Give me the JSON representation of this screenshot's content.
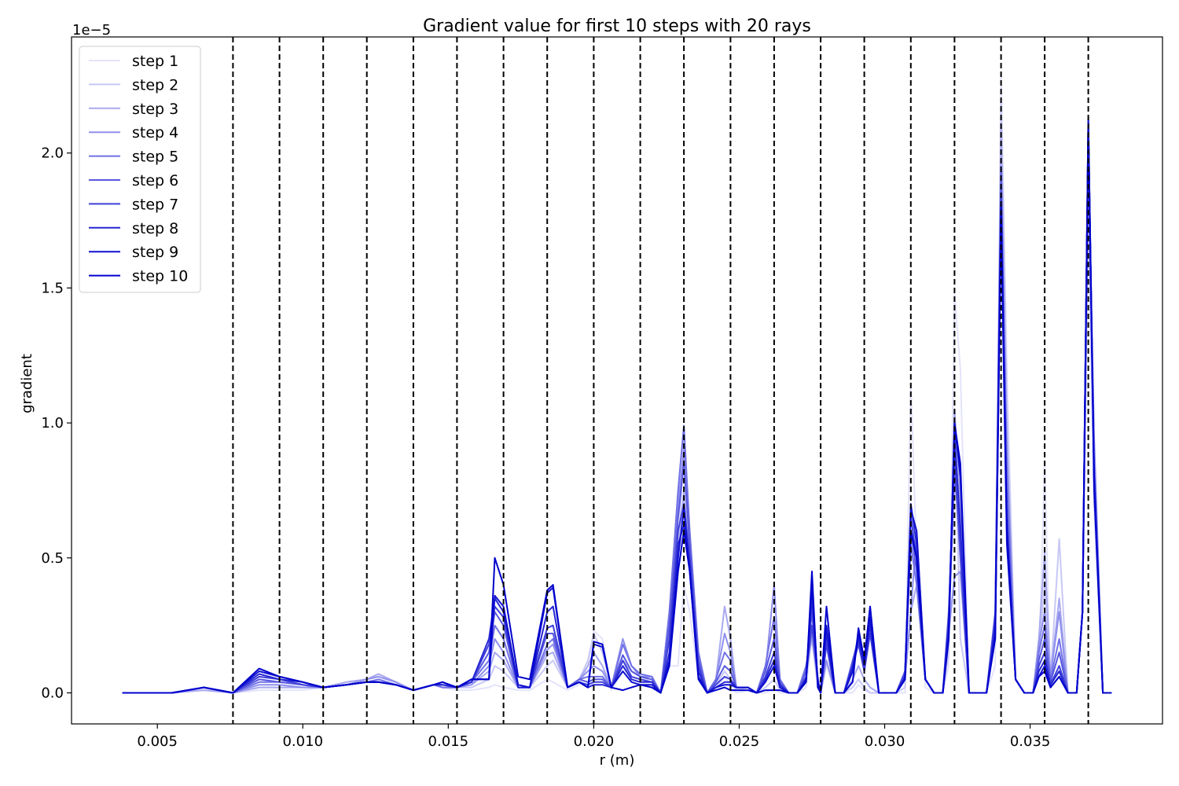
{
  "chart_data": {
    "type": "line",
    "title": "Gradient value for first 10 steps with 20 rays",
    "xlabel": "r (m)",
    "ylabel": "gradient",
    "offset_text": "1e−5",
    "y_scale": 1e-05,
    "xlim": [
      0.00205,
      0.03955
    ],
    "ylim": [
      -0.115,
      2.43
    ],
    "xticks": [
      {
        "value": 0.005,
        "label": "0.005"
      },
      {
        "value": 0.01,
        "label": "0.010"
      },
      {
        "value": 0.015,
        "label": "0.015"
      },
      {
        "value": 0.02,
        "label": "0.020"
      },
      {
        "value": 0.025,
        "label": "0.025"
      },
      {
        "value": 0.03,
        "label": "0.030"
      },
      {
        "value": 0.035,
        "label": "0.035"
      }
    ],
    "yticks": [
      {
        "value": 0.0,
        "label": "0.0"
      },
      {
        "value": 0.5,
        "label": "0.5"
      },
      {
        "value": 1.0,
        "label": "1.0"
      },
      {
        "value": 1.5,
        "label": "1.5"
      },
      {
        "value": 2.0,
        "label": "2.0"
      }
    ],
    "vlines": [
      0.0076,
      0.0092,
      0.0107,
      0.0122,
      0.0138,
      0.0153,
      0.0169,
      0.0184,
      0.02,
      0.0216,
      0.0231,
      0.0247,
      0.0262,
      0.0278,
      0.0293,
      0.0309,
      0.0324,
      0.034,
      0.0355,
      0.037
    ],
    "legend_position": "upper left",
    "grid": false,
    "x": [
      0.0038,
      0.0055,
      0.0066,
      0.0076,
      0.0085,
      0.0092,
      0.01,
      0.0107,
      0.0115,
      0.0122,
      0.0126,
      0.0132,
      0.0138,
      0.0145,
      0.0148,
      0.0153,
      0.0158,
      0.0164,
      0.0166,
      0.0169,
      0.0174,
      0.0178,
      0.0184,
      0.0186,
      0.0191,
      0.0195,
      0.0198,
      0.02,
      0.0203,
      0.0206,
      0.021,
      0.0213,
      0.0216,
      0.022,
      0.0223,
      0.0226,
      0.0229,
      0.0231,
      0.0233,
      0.0236,
      0.0239,
      0.0242,
      0.0245,
      0.0247,
      0.0249,
      0.0253,
      0.0256,
      0.0259,
      0.0262,
      0.0264,
      0.0267,
      0.027,
      0.0273,
      0.0275,
      0.0277,
      0.0278,
      0.028,
      0.0283,
      0.0286,
      0.0289,
      0.0291,
      0.0293,
      0.0295,
      0.0298,
      0.0301,
      0.0304,
      0.0307,
      0.0309,
      0.0311,
      0.0314,
      0.0317,
      0.032,
      0.0322,
      0.0324,
      0.0326,
      0.0329,
      0.0332,
      0.0335,
      0.0338,
      0.034,
      0.0342,
      0.0345,
      0.0348,
      0.0351,
      0.0353,
      0.0355,
      0.0357,
      0.036,
      0.0363,
      0.0366,
      0.0368,
      0.037,
      0.0372,
      0.0375,
      0.0378
    ],
    "series": [
      {
        "name": "step 1",
        "color": "#e3e3fb",
        "values": [
          0,
          0,
          0.01,
          0,
          0.01,
          0.01,
          0.01,
          0.02,
          0.04,
          0.05,
          0.06,
          0.04,
          0.01,
          0.03,
          0.02,
          0.01,
          0.01,
          0.02,
          0.03,
          0.02,
          0.01,
          0.01,
          0.05,
          0.04,
          0.01,
          0.03,
          0.1,
          0.23,
          0.2,
          0.01,
          0.08,
          0.04,
          0.03,
          0.03,
          0,
          0.1,
          0.1,
          0.4,
          0.3,
          0.05,
          0,
          0.02,
          0.06,
          0.03,
          0,
          0.01,
          0,
          0,
          0.02,
          0,
          0,
          0,
          0.02,
          0.2,
          0.02,
          0,
          0.1,
          0,
          0,
          0,
          0.03,
          0.01,
          0,
          0,
          0,
          0,
          0,
          1.15,
          0.5,
          0.02,
          0,
          0,
          0.1,
          1.48,
          1.2,
          0,
          0,
          0,
          0.1,
          2.3,
          1.2,
          0.05,
          0,
          0,
          0.1,
          0.85,
          0.02,
          0.1,
          0,
          0,
          0.3,
          1.9,
          0.8,
          0,
          0
        ]
      },
      {
        "name": "step 2",
        "color": "#c8c8f6",
        "values": [
          0,
          0,
          0.01,
          0,
          0.02,
          0.02,
          0.02,
          0.02,
          0.04,
          0.05,
          0.07,
          0.04,
          0.01,
          0.03,
          0.02,
          0.02,
          0.02,
          0.05,
          0.1,
          0.08,
          0.02,
          0.02,
          0.1,
          0.12,
          0.02,
          0.05,
          0.12,
          0.22,
          0.15,
          0.02,
          0.1,
          0.06,
          0.05,
          0.05,
          0,
          0.2,
          0.5,
          0.95,
          0.6,
          0.1,
          0,
          0.03,
          0.08,
          0.05,
          0.01,
          0.02,
          0,
          0.02,
          0.05,
          0.01,
          0,
          0,
          0.05,
          0.22,
          0.03,
          0,
          0.12,
          0,
          0,
          0.02,
          0.05,
          0.02,
          0,
          0,
          0,
          0,
          0.02,
          0.7,
          0.45,
          0.05,
          0,
          0,
          0.15,
          1.05,
          0.2,
          0,
          0,
          0,
          0.2,
          2.2,
          1.1,
          0.05,
          0,
          0,
          0.15,
          0.4,
          0.05,
          0.57,
          0,
          0,
          0.3,
          1.8,
          0.7,
          0,
          0
        ]
      },
      {
        "name": "step 3",
        "color": "#a9a9f0",
        "values": [
          0,
          0,
          0.01,
          0,
          0.02,
          0.02,
          0.02,
          0.02,
          0.04,
          0.05,
          0.07,
          0.04,
          0.01,
          0.03,
          0.02,
          0.02,
          0.03,
          0.08,
          0.15,
          0.12,
          0.02,
          0.02,
          0.14,
          0.15,
          0.02,
          0.05,
          0.1,
          0.15,
          0.1,
          0.02,
          0.12,
          0.08,
          0.06,
          0.06,
          0,
          0.25,
          0.5,
          0.75,
          0.5,
          0.15,
          0,
          0.05,
          0.32,
          0.2,
          0.02,
          0.02,
          0,
          0.05,
          0.12,
          0.02,
          0,
          0,
          0.1,
          0.2,
          0.04,
          0,
          0.12,
          0,
          0,
          0.05,
          0.1,
          0.05,
          0.02,
          0,
          0,
          0,
          0.05,
          0.3,
          0.4,
          0.05,
          0,
          0,
          0.2,
          1.05,
          0.7,
          0,
          0,
          0,
          0.25,
          2.1,
          0.95,
          0.05,
          0,
          0,
          0.2,
          0.52,
          0.06,
          0.35,
          0,
          0,
          0.3,
          1.85,
          0.85,
          0,
          0
        ]
      },
      {
        "name": "step 4",
        "color": "#8f8fec",
        "values": [
          0,
          0,
          0.02,
          0,
          0.03,
          0.03,
          0.02,
          0.02,
          0.03,
          0.05,
          0.06,
          0.04,
          0.01,
          0.03,
          0.02,
          0.02,
          0.03,
          0.1,
          0.2,
          0.15,
          0.02,
          0.02,
          0.16,
          0.18,
          0.02,
          0.05,
          0.08,
          0.1,
          0.08,
          0.02,
          0.2,
          0.1,
          0.06,
          0.06,
          0,
          0.3,
          0.7,
          0.9,
          0.55,
          0.15,
          0,
          0.05,
          0.22,
          0.15,
          0.02,
          0.02,
          0,
          0.08,
          0.4,
          0.05,
          0,
          0,
          0.1,
          0.22,
          0.05,
          0,
          0.12,
          0,
          0,
          0.08,
          0.2,
          0.1,
          0.25,
          0,
          0,
          0,
          0.05,
          0.3,
          0.6,
          0.05,
          0,
          0,
          0.22,
          0.43,
          0.45,
          0,
          0,
          0,
          0.2,
          1.75,
          0.9,
          0.05,
          0,
          0,
          0.18,
          0.3,
          0.06,
          0.3,
          0,
          0,
          0.3,
          1.95,
          0.95,
          0,
          0
        ]
      },
      {
        "name": "step 5",
        "color": "#7171e6",
        "values": [
          0,
          0,
          0.02,
          0,
          0.04,
          0.04,
          0.03,
          0.02,
          0.03,
          0.04,
          0.05,
          0.03,
          0.01,
          0.03,
          0.02,
          0.02,
          0.04,
          0.12,
          0.25,
          0.2,
          0.02,
          0.02,
          0.18,
          0.2,
          0.02,
          0.05,
          0.06,
          0.06,
          0.06,
          0.02,
          0.18,
          0.1,
          0.07,
          0.06,
          0,
          0.3,
          0.75,
          0.99,
          0.6,
          0.15,
          0,
          0.05,
          0.15,
          0.12,
          0.02,
          0.02,
          0,
          0.1,
          0.28,
          0.05,
          0,
          0,
          0.1,
          0.25,
          0.06,
          0,
          0.18,
          0,
          0,
          0.1,
          0.22,
          0.12,
          0.32,
          0,
          0,
          0,
          0.08,
          0.55,
          0.4,
          0.05,
          0,
          0,
          0.25,
          0.8,
          0.6,
          0,
          0,
          0,
          0.25,
          1.9,
          0.8,
          0.05,
          0,
          0,
          0.15,
          0.25,
          0.05,
          0.2,
          0,
          0,
          0.3,
          2.05,
          0.8,
          0,
          0
        ]
      },
      {
        "name": "step 6",
        "color": "#5858e0",
        "values": [
          0,
          0,
          0.02,
          0,
          0.05,
          0.04,
          0.03,
          0.02,
          0.03,
          0.04,
          0.04,
          0.03,
          0.01,
          0.03,
          0.03,
          0.02,
          0.04,
          0.15,
          0.3,
          0.25,
          0.02,
          0.02,
          0.22,
          0.22,
          0.02,
          0.05,
          0.04,
          0.05,
          0.05,
          0.02,
          0.14,
          0.08,
          0.06,
          0.05,
          0,
          0.25,
          0.65,
          0.85,
          0.55,
          0.12,
          0,
          0.04,
          0.1,
          0.08,
          0.02,
          0.02,
          0,
          0.08,
          0.2,
          0.04,
          0,
          0,
          0.08,
          0.3,
          0.05,
          0,
          0.2,
          0,
          0,
          0.12,
          0.2,
          0.1,
          0.28,
          0,
          0,
          0,
          0.08,
          0.6,
          0.45,
          0.05,
          0,
          0,
          0.3,
          0.85,
          0.5,
          0,
          0,
          0,
          0.3,
          1.95,
          0.7,
          0.05,
          0,
          0,
          0.12,
          0.2,
          0.04,
          0.15,
          0,
          0,
          0.3,
          2.1,
          0.85,
          0,
          0
        ]
      },
      {
        "name": "step 7",
        "color": "#3f3fda",
        "values": [
          0,
          0,
          0.02,
          0,
          0.06,
          0.05,
          0.03,
          0.02,
          0.03,
          0.04,
          0.04,
          0.03,
          0.01,
          0.03,
          0.03,
          0.02,
          0.04,
          0.18,
          0.32,
          0.28,
          0.02,
          0.02,
          0.24,
          0.25,
          0.02,
          0.04,
          0.03,
          0.04,
          0.04,
          0.02,
          0.12,
          0.06,
          0.05,
          0.04,
          0,
          0.2,
          0.6,
          0.7,
          0.5,
          0.1,
          0,
          0.03,
          0.06,
          0.05,
          0.02,
          0.02,
          0,
          0.06,
          0.15,
          0.03,
          0,
          0,
          0.06,
          0.25,
          0.05,
          0,
          0.18,
          0,
          0,
          0.1,
          0.18,
          0.08,
          0.22,
          0,
          0,
          0,
          0.07,
          0.65,
          0.5,
          0.05,
          0,
          0,
          0.28,
          0.9,
          0.55,
          0,
          0,
          0,
          0.28,
          1.85,
          0.65,
          0.05,
          0,
          0,
          0.1,
          0.15,
          0.03,
          0.1,
          0,
          0,
          0.3,
          2.12,
          0.8,
          0,
          0
        ]
      },
      {
        "name": "step 8",
        "color": "#2626d4",
        "values": [
          0,
          0,
          0.02,
          0,
          0.07,
          0.05,
          0.04,
          0.02,
          0.03,
          0.04,
          0.04,
          0.03,
          0.01,
          0.03,
          0.03,
          0.02,
          0.04,
          0.2,
          0.35,
          0.3,
          0.02,
          0.02,
          0.3,
          0.32,
          0.02,
          0.04,
          0.02,
          0.03,
          0.03,
          0.02,
          0.1,
          0.05,
          0.04,
          0.04,
          0,
          0.15,
          0.55,
          0.62,
          0.48,
          0.08,
          0,
          0.02,
          0.04,
          0.04,
          0.02,
          0.02,
          0,
          0.05,
          0.12,
          0.03,
          0,
          0,
          0.05,
          0.35,
          0.04,
          0,
          0.22,
          0,
          0,
          0.1,
          0.2,
          0.1,
          0.25,
          0,
          0,
          0,
          0.06,
          0.7,
          0.55,
          0.05,
          0,
          0,
          0.25,
          0.95,
          0.62,
          0,
          0,
          0,
          0.25,
          1.8,
          0.6,
          0.05,
          0,
          0,
          0.08,
          0.12,
          0.03,
          0.08,
          0,
          0,
          0.3,
          2.13,
          0.78,
          0,
          0
        ]
      },
      {
        "name": "step 9",
        "color": "#1010cf",
        "values": [
          0,
          0,
          0.02,
          0,
          0.08,
          0.06,
          0.04,
          0.02,
          0.03,
          0.04,
          0.04,
          0.03,
          0.01,
          0.03,
          0.04,
          0.02,
          0.05,
          0.05,
          0.36,
          0.32,
          0.03,
          0.02,
          0.37,
          0.39,
          0.02,
          0.04,
          0.02,
          0.18,
          0.17,
          0.02,
          0.08,
          0.04,
          0.03,
          0.03,
          0,
          0.12,
          0.5,
          0.68,
          0.45,
          0.06,
          0,
          0.02,
          0.03,
          0.03,
          0.02,
          0.02,
          0,
          0.04,
          0.1,
          0.02,
          0,
          0,
          0.05,
          0.4,
          0.04,
          0,
          0.25,
          0,
          0,
          0.08,
          0.22,
          0.12,
          0.28,
          0,
          0,
          0,
          0.05,
          0.68,
          0.6,
          0.05,
          0,
          0,
          0.22,
          1.0,
          0.8,
          0,
          0,
          0,
          0.22,
          1.75,
          0.55,
          0.05,
          0,
          0,
          0.06,
          0.1,
          0.02,
          0.06,
          0,
          0,
          0.3,
          2.12,
          0.75,
          0,
          0
        ]
      },
      {
        "name": "step 10",
        "color": "#0000cc",
        "values": [
          0,
          0,
          0.02,
          0,
          0.09,
          0.06,
          0.04,
          0.02,
          0.03,
          0.04,
          0.04,
          0.03,
          0.01,
          0.03,
          0.04,
          0.02,
          0.05,
          0.05,
          0.5,
          0.4,
          0.06,
          0.05,
          0.38,
          0.4,
          0.02,
          0.04,
          0.02,
          0.19,
          0.18,
          0.02,
          0.01,
          0.02,
          0.03,
          0.02,
          0,
          0.1,
          0.45,
          0.6,
          0.45,
          0.05,
          0,
          0.01,
          0.02,
          0.01,
          0.01,
          0.01,
          0,
          0.01,
          0.01,
          0.01,
          0,
          0,
          0.04,
          0.45,
          0.02,
          0,
          0.32,
          0,
          0,
          0.04,
          0.24,
          0.12,
          0.32,
          0,
          0,
          0,
          0.05,
          0.6,
          0.5,
          0.05,
          0,
          0,
          0.2,
          1.0,
          0.85,
          0,
          0,
          0,
          0.2,
          1.8,
          0.6,
          0.05,
          0,
          0,
          0.06,
          0.08,
          0.02,
          0.06,
          0,
          0,
          0.3,
          2.1,
          0.8,
          0,
          0
        ]
      }
    ]
  }
}
